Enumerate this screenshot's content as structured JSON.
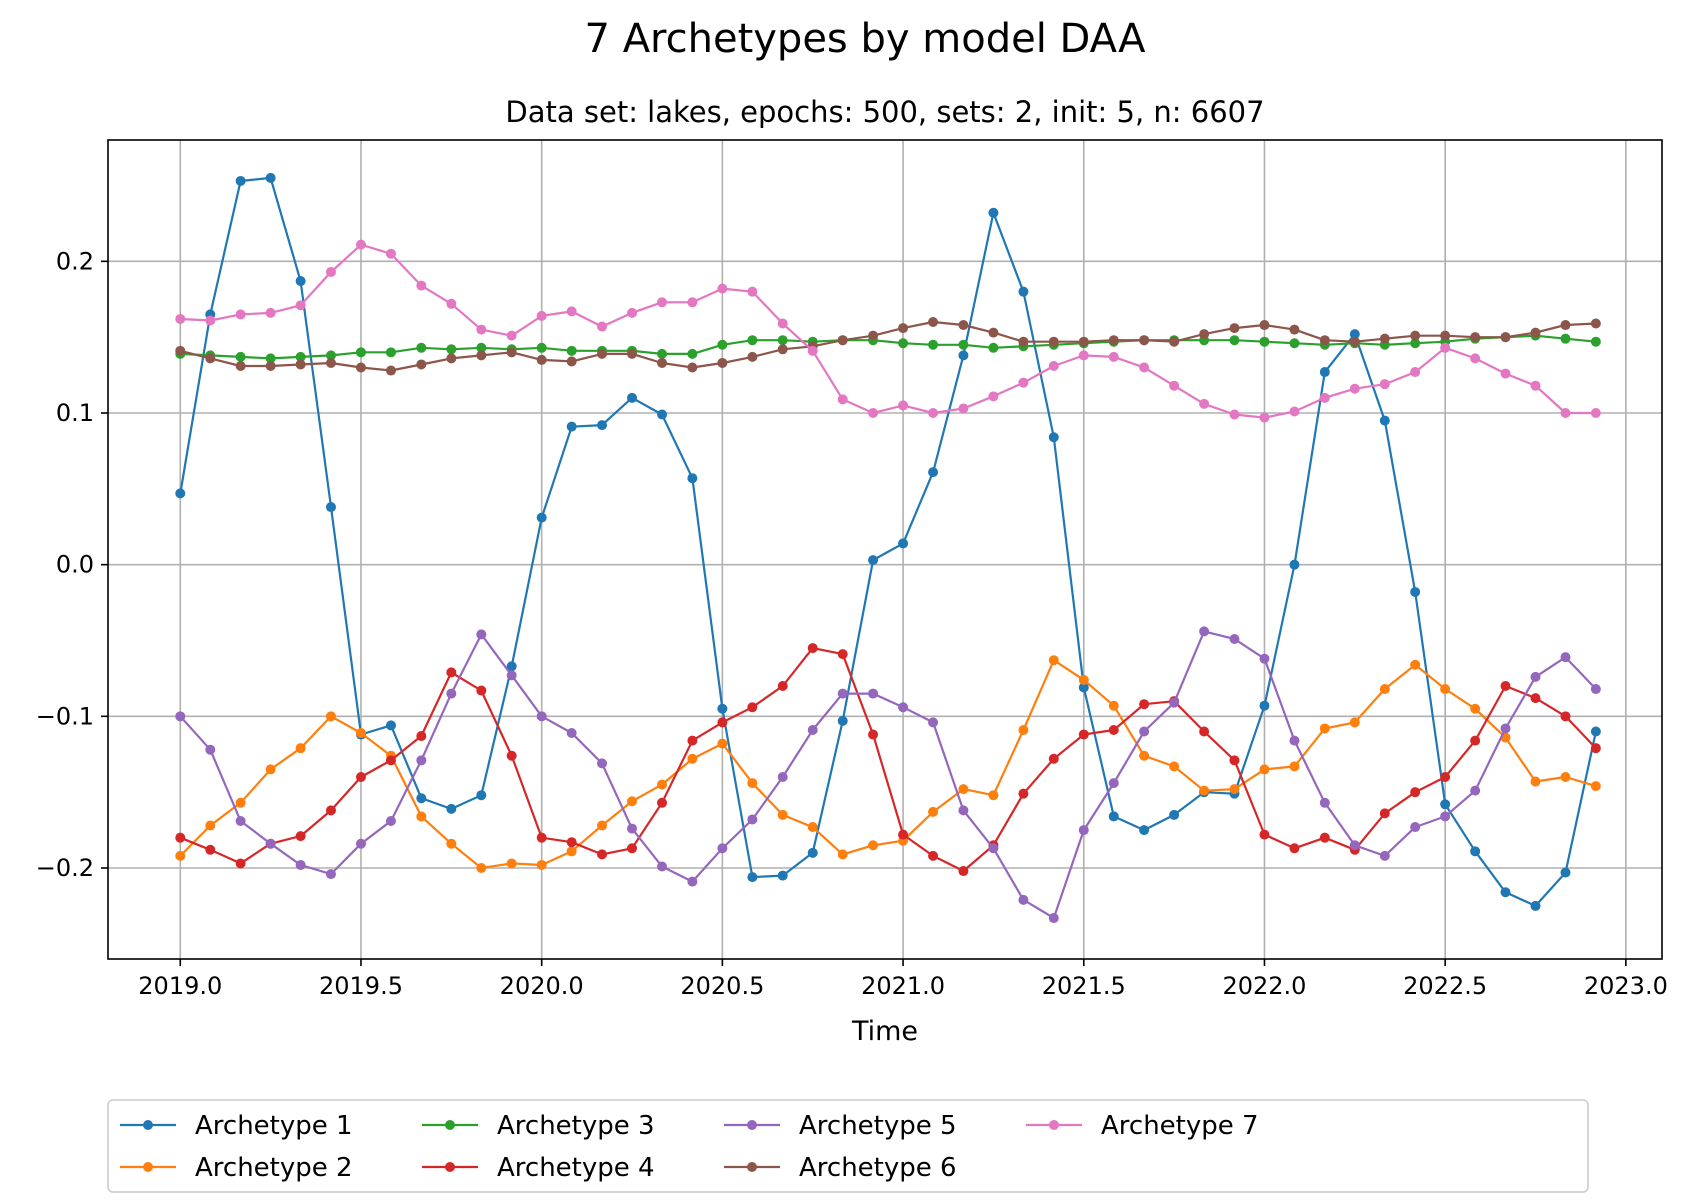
{
  "figure": {
    "title": "7 Archetypes by model DAA",
    "subtitle": "Data set: lakes, epochs: 500, sets: 2, init: 5, n: 6607"
  },
  "chart_data": {
    "type": "line",
    "title": "7 Archetypes by model DAA",
    "subtitle": "Data set: lakes, epochs: 500, sets: 2, init: 5, n: 6607",
    "xlabel": "Time",
    "ylabel": "",
    "xlim": [
      2018.8,
      2023.1
    ],
    "ylim": [
      -0.26,
      0.28
    ],
    "xticks": [
      2019.0,
      2019.5,
      2020.0,
      2020.5,
      2021.0,
      2021.5,
      2022.0,
      2022.5,
      2023.0
    ],
    "xtick_labels": [
      "2019.0",
      "2019.5",
      "2020.0",
      "2020.5",
      "2021.0",
      "2021.5",
      "2022.0",
      "2022.5",
      "2023.0"
    ],
    "yticks": [
      -0.2,
      -0.1,
      0.0,
      0.1,
      0.2
    ],
    "ytick_labels": [
      "−0.2",
      "−0.1",
      "0.0",
      "0.1",
      "0.2"
    ],
    "grid": true,
    "legend_position": "bottom",
    "x_start": 2019.0,
    "x_step_months": 1,
    "x": [
      2019.0,
      2019.083,
      2019.167,
      2019.25,
      2019.333,
      2019.417,
      2019.5,
      2019.583,
      2019.667,
      2019.75,
      2019.833,
      2019.917,
      2020.0,
      2020.083,
      2020.167,
      2020.25,
      2020.333,
      2020.417,
      2020.5,
      2020.583,
      2020.667,
      2020.75,
      2020.833,
      2020.917,
      2021.0,
      2021.083,
      2021.167,
      2021.25,
      2021.333,
      2021.417,
      2021.5,
      2021.583,
      2021.667,
      2021.75,
      2021.833,
      2021.917,
      2022.0,
      2022.083,
      2022.167,
      2022.25,
      2022.333,
      2022.417,
      2022.5,
      2022.583,
      2022.667,
      2022.75,
      2022.833,
      2022.917
    ],
    "series": [
      {
        "name": "Archetype 1",
        "color": "#1f77b4",
        "values": [
          0.047,
          0.165,
          0.253,
          0.255,
          0.187,
          0.038,
          -0.112,
          -0.106,
          -0.154,
          -0.161,
          -0.152,
          -0.067,
          0.031,
          0.091,
          0.092,
          0.11,
          0.099,
          0.057,
          -0.095,
          -0.206,
          -0.205,
          -0.19,
          -0.103,
          0.003,
          0.014,
          0.061,
          0.138,
          0.232,
          0.18,
          0.084,
          -0.081,
          -0.166,
          -0.175,
          -0.165,
          -0.15,
          -0.151,
          -0.093,
          0.0,
          0.127,
          0.152,
          0.095,
          -0.018,
          -0.158,
          -0.189,
          -0.216,
          -0.225,
          -0.203,
          -0.11
        ]
      },
      {
        "name": "Archetype 2",
        "color": "#ff7f0e",
        "values": [
          -0.192,
          -0.172,
          -0.157,
          -0.135,
          -0.121,
          -0.1,
          -0.111,
          -0.126,
          -0.166,
          -0.184,
          -0.2,
          -0.197,
          -0.198,
          -0.189,
          -0.172,
          -0.156,
          -0.145,
          -0.128,
          -0.118,
          -0.144,
          -0.165,
          -0.173,
          -0.191,
          -0.185,
          -0.182,
          -0.163,
          -0.148,
          -0.152,
          -0.109,
          -0.063,
          -0.076,
          -0.093,
          -0.126,
          -0.133,
          -0.149,
          -0.148,
          -0.135,
          -0.133,
          -0.108,
          -0.104,
          -0.082,
          -0.066,
          -0.082,
          -0.095,
          -0.114,
          -0.143,
          -0.14,
          -0.146
        ]
      },
      {
        "name": "Archetype 3",
        "color": "#2ca02c",
        "values": [
          0.139,
          0.138,
          0.137,
          0.136,
          0.137,
          0.138,
          0.14,
          0.14,
          0.143,
          0.142,
          0.143,
          0.142,
          0.143,
          0.141,
          0.141,
          0.141,
          0.139,
          0.139,
          0.145,
          0.148,
          0.148,
          0.147,
          0.148,
          0.148,
          0.146,
          0.145,
          0.145,
          0.143,
          0.144,
          0.145,
          0.146,
          0.147,
          0.148,
          0.148,
          0.148,
          0.148,
          0.147,
          0.146,
          0.145,
          0.146,
          0.145,
          0.146,
          0.147,
          0.149,
          0.15,
          0.151,
          0.149,
          0.147
        ]
      },
      {
        "name": "Archetype 4",
        "color": "#d62728",
        "values": [
          -0.18,
          -0.188,
          -0.197,
          -0.184,
          -0.179,
          -0.162,
          -0.14,
          -0.129,
          -0.113,
          -0.071,
          -0.083,
          -0.126,
          -0.18,
          -0.183,
          -0.191,
          -0.187,
          -0.157,
          -0.116,
          -0.104,
          -0.094,
          -0.08,
          -0.055,
          -0.059,
          -0.112,
          -0.178,
          -0.192,
          -0.202,
          -0.185,
          -0.151,
          -0.128,
          -0.112,
          -0.109,
          -0.092,
          -0.09,
          -0.11,
          -0.129,
          -0.178,
          -0.187,
          -0.18,
          -0.188,
          -0.164,
          -0.15,
          -0.14,
          -0.116,
          -0.08,
          -0.088,
          -0.1,
          -0.121
        ]
      },
      {
        "name": "Archetype 5",
        "color": "#9467bd",
        "values": [
          -0.1,
          -0.122,
          -0.169,
          -0.184,
          -0.198,
          -0.204,
          -0.184,
          -0.169,
          -0.129,
          -0.085,
          -0.046,
          -0.073,
          -0.1,
          -0.111,
          -0.131,
          -0.174,
          -0.199,
          -0.209,
          -0.187,
          -0.168,
          -0.14,
          -0.109,
          -0.085,
          -0.085,
          -0.094,
          -0.104,
          -0.162,
          -0.187,
          -0.221,
          -0.233,
          -0.175,
          -0.144,
          -0.11,
          -0.091,
          -0.044,
          -0.049,
          -0.062,
          -0.116,
          -0.157,
          -0.185,
          -0.192,
          -0.173,
          -0.166,
          -0.149,
          -0.108,
          -0.074,
          -0.061,
          -0.082
        ]
      },
      {
        "name": "Archetype 6",
        "color": "#8c564b",
        "values": [
          0.141,
          0.136,
          0.131,
          0.131,
          0.132,
          0.133,
          0.13,
          0.128,
          0.132,
          0.136,
          0.138,
          0.14,
          0.135,
          0.134,
          0.139,
          0.139,
          0.133,
          0.13,
          0.133,
          0.137,
          0.142,
          0.144,
          0.148,
          0.151,
          0.156,
          0.16,
          0.158,
          0.153,
          0.147,
          0.147,
          0.147,
          0.148,
          0.148,
          0.147,
          0.152,
          0.156,
          0.158,
          0.155,
          0.148,
          0.147,
          0.149,
          0.151,
          0.151,
          0.15,
          0.15,
          0.153,
          0.158,
          0.159
        ]
      },
      {
        "name": "Archetype 7",
        "color": "#e377c2",
        "values": [
          0.162,
          0.161,
          0.165,
          0.166,
          0.171,
          0.193,
          0.211,
          0.205,
          0.184,
          0.172,
          0.155,
          0.151,
          0.164,
          0.167,
          0.157,
          0.166,
          0.173,
          0.173,
          0.182,
          0.18,
          0.159,
          0.141,
          0.109,
          0.1,
          0.105,
          0.1,
          0.103,
          0.111,
          0.12,
          0.131,
          0.138,
          0.137,
          0.13,
          0.118,
          0.106,
          0.099,
          0.097,
          0.101,
          0.11,
          0.116,
          0.119,
          0.127,
          0.143,
          0.136,
          0.126,
          0.118,
          0.1,
          0.1
        ]
      }
    ]
  }
}
